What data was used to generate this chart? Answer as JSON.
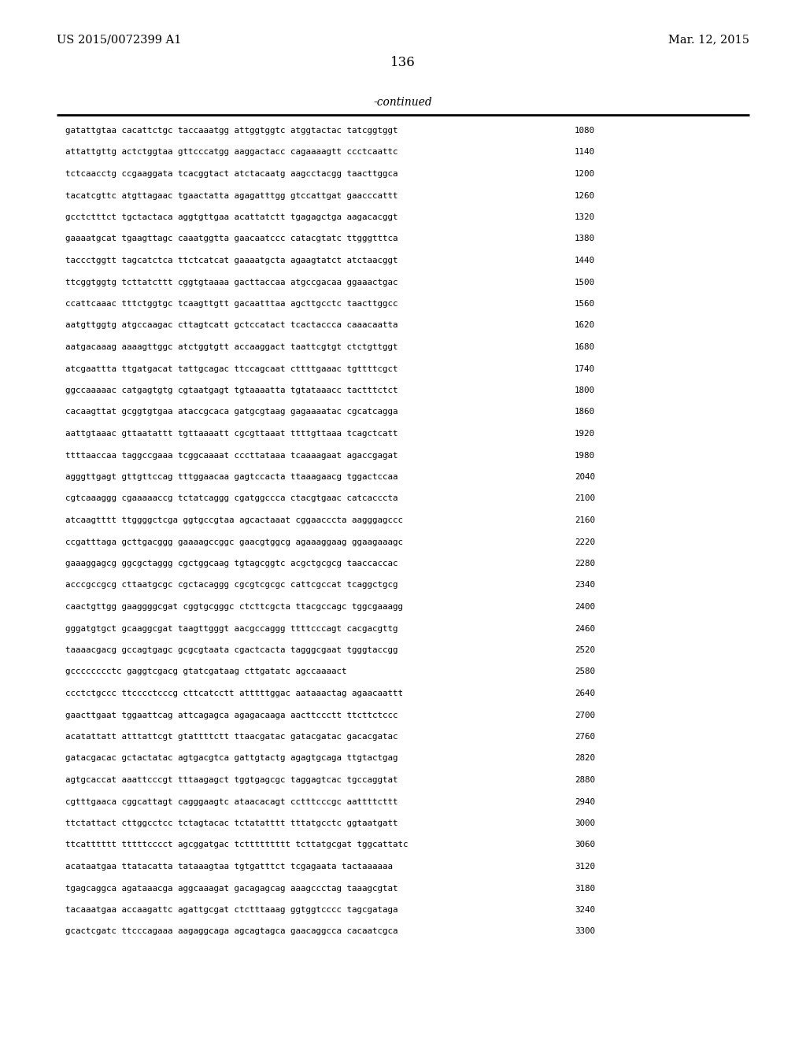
{
  "left_header": "US 2015/0072399 A1",
  "right_header": "Mar. 12, 2015",
  "page_number": "136",
  "continued_label": "-continued",
  "background_color": "#ffffff",
  "text_color": "#000000",
  "sequence_lines": [
    [
      "gatattgtaa cacattctgc taccaaatgg attggtggtc atggtactac tatcggtggt",
      "1080"
    ],
    [
      "attattgttg actctggtaa gttcccatgg aaggactacc cagaaaagtt ccctcaattc",
      "1140"
    ],
    [
      "tctcaacctg ccgaaggata tcacggtact atctacaatg aagcctacgg taacttggca",
      "1200"
    ],
    [
      "tacatcgttc atgttagaac tgaactatta agagatttgg gtccattgat gaacccattt",
      "1260"
    ],
    [
      "gcctctttct tgctactaca aggtgttgaa acattatctt tgagagctga aagacacggt",
      "1320"
    ],
    [
      "gaaaatgcat tgaagttagc caaatggtta gaacaatccc catacgtatc ttgggtttca",
      "1380"
    ],
    [
      "taccctggtt tagcatctca ttctcatcat gaaaatgcta agaagtatct atctaacggt",
      "1440"
    ],
    [
      "ttcggtggtg tcttatcttt cggtgtaaaa gacttaccaa atgccgacaa ggaaactgac",
      "1500"
    ],
    [
      "ccattcaaac tttctggtgc tcaagttgtt gacaatttaa agcttgcctc taacttggcc",
      "1560"
    ],
    [
      "aatgttggtg atgccaagac cttagtcatt gctccatact tcactaccca caaacaatta",
      "1620"
    ],
    [
      "aatgacaaag aaaagttggc atctggtgtt accaaggact taattcgtgt ctctgttggt",
      "1680"
    ],
    [
      "atcgaattta ttgatgacat tattgcagac ttccagcaat cttttgaaac tgttttcgct",
      "1740"
    ],
    [
      "ggccaaaaac catgagtgtg cgtaatgagt tgtaaaatta tgtataaacc tactttctct",
      "1800"
    ],
    [
      "cacaagttat gcggtgtgaa ataccgcaca gatgcgtaag gagaaaatac cgcatcagga",
      "1860"
    ],
    [
      "aattgtaaac gttaatattt tgttaaaatt cgcgttaaat ttttgttaaa tcagctcatt",
      "1920"
    ],
    [
      "ttttaaccaa taggccgaaa tcggcaaaat cccttataaa tcaaaagaat agaccgagat",
      "1980"
    ],
    [
      "agggttgagt gttgttccag tttggaacaa gagtccacta ttaaagaacg tggactccaa",
      "2040"
    ],
    [
      "cgtcaaaggg cgaaaaaccg tctatcaggg cgatggccca ctacgtgaac catcacccta",
      "2100"
    ],
    [
      "atcaagtttt ttggggctcga ggtgccgtaa agcactaaat cggaacccta aagggagccc",
      "2160"
    ],
    [
      "ccgatttaga gcttgacggg gaaaagccggc gaacgtggcg agaaaggaag ggaagaaagc",
      "2220"
    ],
    [
      "gaaaggagcg ggcgctaggg cgctggcaag tgtagcggtc acgctgcgcg taaccaccac",
      "2280"
    ],
    [
      "acccgccgcg cttaatgcgc cgctacaggg cgcgtcgcgc cattcgccat tcaggctgcg",
      "2340"
    ],
    [
      "caactgttgg gaaggggcgat cggtgcgggc ctcttcgcta ttacgccagc tggcgaaagg",
      "2400"
    ],
    [
      "gggatgtgct gcaaggcgat taagttgggt aacgccaggg ttttcccagt cacgacgttg",
      "2460"
    ],
    [
      "taaaacgacg gccagtgagc gcgcgtaata cgactcacta tagggcgaat tgggtaccgg",
      "2520"
    ],
    [
      "gcccccccctc gaggtcgacg gtatcgataag cttgatatc agccaaaact",
      "2580"
    ],
    [
      "ccctctgccc ttcccctcccg cttcatcctt atttttggac aataaactag agaacaattt",
      "2640"
    ],
    [
      "gaacttgaat tggaattcag attcagagca agagacaaga aacttccctt ttcttctccc",
      "2700"
    ],
    [
      "acatattatt atttattcgt gtattttctt ttaacgatac gatacgatac gacacgatac",
      "2760"
    ],
    [
      "gatacgacac gctactatac agtgacgtca gattgtactg agagtgcaga ttgtactgag",
      "2820"
    ],
    [
      "agtgcaccat aaattcccgt tttaagagct tggtgagcgc taggagtcac tgccaggtat",
      "2880"
    ],
    [
      "cgtttgaaca cggcattagt cagggaagtc ataacacagt cctttcccgc aattttcttt",
      "2940"
    ],
    [
      "ttctattact cttggcctcc tctagtacac tctatatttt tttatgcctc ggtaatgatt",
      "3000"
    ],
    [
      "ttcatttttt tttttcccct agcggatgac tcttttttttt tcttatgcgat tggcattatc",
      "3060"
    ],
    [
      "acataatgaa ttatacatta tataaagtaa tgtgatttct tcgagaata tactaaaaaa",
      "3120"
    ],
    [
      "tgagcaggca agataaacga aggcaaagat gacagagcag aaagccctag taaagcgtat",
      "3180"
    ],
    [
      "tacaaatgaa accaagattc agattgcgat ctctttaaag ggtggtcccc tagcgataga",
      "3240"
    ],
    [
      "gcactcgatc ttcccagaaa aagaggcaga agcagtagca gaacaggcca cacaatcgca",
      "3300"
    ]
  ]
}
